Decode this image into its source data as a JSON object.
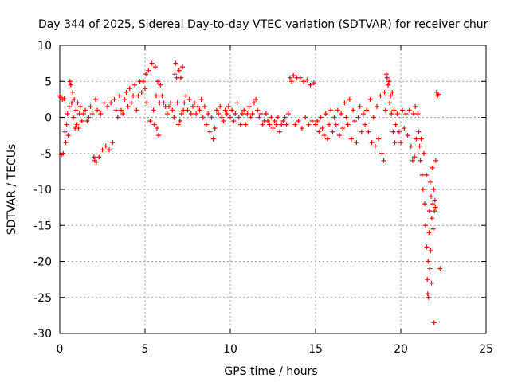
{
  "chart_data": {
    "type": "scatter",
    "title": "Day 344 of 2025, Sidereal Day-to-day VTEC variation (SDTVAR) for receiver chur",
    "xlabel": "GPS time / hours",
    "ylabel": "SDTVAR / TECUs",
    "xlim": [
      0,
      25
    ],
    "ylim": [
      -30,
      10
    ],
    "xticks": [
      0,
      5,
      10,
      15,
      20,
      25
    ],
    "yticks": [
      10,
      5,
      0,
      -5,
      -10,
      -15,
      -20,
      -25,
      -30
    ],
    "grid": true,
    "marker": "+",
    "series_color": "#ff0000",
    "series": [
      {
        "name": "SDTVAR",
        "points": [
          [
            0.0,
            3.0
          ],
          [
            0.05,
            2.8
          ],
          [
            0.1,
            -5.2
          ],
          [
            0.15,
            2.5
          ],
          [
            0.2,
            -5.0
          ],
          [
            0.25,
            2.6
          ],
          [
            0.3,
            -2.0
          ],
          [
            0.35,
            -3.5
          ],
          [
            0.4,
            -1.0
          ],
          [
            0.45,
            0.5
          ],
          [
            0.5,
            -2.5
          ],
          [
            0.55,
            1.5
          ],
          [
            0.6,
            5.0
          ],
          [
            0.65,
            4.5
          ],
          [
            0.7,
            2.0
          ],
          [
            0.75,
            3.5
          ],
          [
            0.8,
            0.0
          ],
          [
            0.85,
            2.5
          ],
          [
            0.9,
            -1.5
          ],
          [
            0.95,
            1.0
          ],
          [
            1.0,
            -1.0
          ],
          [
            1.05,
            2.0
          ],
          [
            1.1,
            -1.5
          ],
          [
            1.15,
            0.5
          ],
          [
            1.2,
            1.5
          ],
          [
            1.3,
            -0.5
          ],
          [
            1.4,
            0.5
          ],
          [
            1.5,
            1.0
          ],
          [
            1.6,
            -0.5
          ],
          [
            1.7,
            0.0
          ],
          [
            1.8,
            1.5
          ],
          [
            1.9,
            0.5
          ],
          [
            2.0,
            -5.5
          ],
          [
            2.05,
            -6.0
          ],
          [
            2.1,
            2.5
          ],
          [
            2.15,
            -6.2
          ],
          [
            2.2,
            1.0
          ],
          [
            2.3,
            -5.5
          ],
          [
            2.4,
            0.5
          ],
          [
            2.5,
            -4.5
          ],
          [
            2.6,
            2.0
          ],
          [
            2.7,
            -4.0
          ],
          [
            2.8,
            1.5
          ],
          [
            2.9,
            -4.5
          ],
          [
            3.0,
            2.0
          ],
          [
            3.1,
            -3.5
          ],
          [
            3.2,
            2.5
          ],
          [
            3.3,
            1.0
          ],
          [
            3.4,
            0.0
          ],
          [
            3.5,
            3.0
          ],
          [
            3.6,
            1.0
          ],
          [
            3.7,
            0.5
          ],
          [
            3.8,
            2.5
          ],
          [
            3.9,
            3.5
          ],
          [
            4.0,
            1.5
          ],
          [
            4.1,
            4.0
          ],
          [
            4.2,
            2.0
          ],
          [
            4.3,
            3.0
          ],
          [
            4.4,
            4.5
          ],
          [
            4.5,
            1.0
          ],
          [
            4.6,
            3.0
          ],
          [
            4.7,
            5.0
          ],
          [
            4.8,
            3.5
          ],
          [
            4.9,
            5.0
          ],
          [
            5.0,
            4.0
          ],
          [
            5.05,
            6.0
          ],
          [
            5.1,
            2.0
          ],
          [
            5.2,
            6.5
          ],
          [
            5.3,
            -0.5
          ],
          [
            5.4,
            7.5
          ],
          [
            5.5,
            1.0
          ],
          [
            5.55,
            -1.0
          ],
          [
            5.6,
            7.0
          ],
          [
            5.65,
            3.0
          ],
          [
            5.7,
            -1.5
          ],
          [
            5.75,
            5.0
          ],
          [
            5.8,
            -2.5
          ],
          [
            5.85,
            2.0
          ],
          [
            5.9,
            4.5
          ],
          [
            6.0,
            3.0
          ],
          [
            6.1,
            2.0
          ],
          [
            6.2,
            1.5
          ],
          [
            6.3,
            0.5
          ],
          [
            6.4,
            1.5
          ],
          [
            6.5,
            2.0
          ],
          [
            6.6,
            1.0
          ],
          [
            6.7,
            0.0
          ],
          [
            6.75,
            6.0
          ],
          [
            6.8,
            7.5
          ],
          [
            6.85,
            5.5
          ],
          [
            6.9,
            2.0
          ],
          [
            6.95,
            -1.0
          ],
          [
            7.0,
            6.5
          ],
          [
            7.05,
            -0.5
          ],
          [
            7.1,
            5.5
          ],
          [
            7.15,
            0.5
          ],
          [
            7.2,
            7.0
          ],
          [
            7.25,
            1.0
          ],
          [
            7.3,
            2.0
          ],
          [
            7.4,
            3.0
          ],
          [
            7.5,
            1.0
          ],
          [
            7.6,
            2.5
          ],
          [
            7.7,
            0.5
          ],
          [
            7.8,
            1.5
          ],
          [
            7.9,
            2.0
          ],
          [
            8.0,
            0.5
          ],
          [
            8.1,
            1.5
          ],
          [
            8.2,
            1.0
          ],
          [
            8.3,
            2.5
          ],
          [
            8.4,
            0.0
          ],
          [
            8.5,
            1.5
          ],
          [
            8.6,
            -1.0
          ],
          [
            8.7,
            0.5
          ],
          [
            8.8,
            -2.0
          ],
          [
            8.9,
            0.0
          ],
          [
            9.0,
            -3.0
          ],
          [
            9.1,
            -1.5
          ],
          [
            9.2,
            1.0
          ],
          [
            9.3,
            0.5
          ],
          [
            9.4,
            1.5
          ],
          [
            9.5,
            0.0
          ],
          [
            9.6,
            -0.5
          ],
          [
            9.7,
            1.0
          ],
          [
            9.8,
            0.5
          ],
          [
            9.9,
            1.5
          ],
          [
            10.0,
            0.0
          ],
          [
            10.1,
            1.0
          ],
          [
            10.2,
            -0.5
          ],
          [
            10.3,
            0.5
          ],
          [
            10.4,
            2.0
          ],
          [
            10.5,
            0.0
          ],
          [
            10.6,
            -1.0
          ],
          [
            10.7,
            0.5
          ],
          [
            10.8,
            1.0
          ],
          [
            10.9,
            -1.0
          ],
          [
            11.0,
            0.5
          ],
          [
            11.1,
            1.5
          ],
          [
            11.2,
            0.0
          ],
          [
            11.3,
            0.5
          ],
          [
            11.4,
            2.0
          ],
          [
            11.5,
            2.5
          ],
          [
            11.6,
            1.0
          ],
          [
            11.7,
            0.0
          ],
          [
            11.8,
            0.5
          ],
          [
            11.9,
            -1.0
          ],
          [
            12.0,
            -0.5
          ],
          [
            12.1,
            0.5
          ],
          [
            12.2,
            -0.5
          ],
          [
            12.3,
            -1.0
          ],
          [
            12.4,
            0.0
          ],
          [
            12.5,
            -1.5
          ],
          [
            12.6,
            -0.5
          ],
          [
            12.7,
            -1.0
          ],
          [
            12.8,
            0.0
          ],
          [
            12.9,
            -2.0
          ],
          [
            13.0,
            -1.0
          ],
          [
            13.1,
            -0.5
          ],
          [
            13.2,
            0.0
          ],
          [
            13.3,
            -1.0
          ],
          [
            13.4,
            0.5
          ],
          [
            13.5,
            5.5
          ],
          [
            13.6,
            5.0
          ],
          [
            13.7,
            5.8
          ],
          [
            13.8,
            -1.0
          ],
          [
            13.9,
            5.5
          ],
          [
            14.0,
            -0.5
          ],
          [
            14.1,
            5.5
          ],
          [
            14.2,
            -1.5
          ],
          [
            14.3,
            5.0
          ],
          [
            14.4,
            0.0
          ],
          [
            14.5,
            5.2
          ],
          [
            14.6,
            -1.0
          ],
          [
            14.7,
            4.5
          ],
          [
            14.8,
            -0.5
          ],
          [
            14.9,
            4.8
          ],
          [
            15.0,
            -1.0
          ],
          [
            15.1,
            -0.5
          ],
          [
            15.2,
            -2.0
          ],
          [
            15.3,
            0.0
          ],
          [
            15.4,
            -1.5
          ],
          [
            15.5,
            -2.5
          ],
          [
            15.6,
            0.5
          ],
          [
            15.7,
            -3.0
          ],
          [
            15.8,
            -1.0
          ],
          [
            15.9,
            1.0
          ],
          [
            16.0,
            -2.0
          ],
          [
            16.1,
            0.0
          ],
          [
            16.2,
            -1.0
          ],
          [
            16.3,
            1.0
          ],
          [
            16.4,
            -2.5
          ],
          [
            16.5,
            0.5
          ],
          [
            16.6,
            -1.5
          ],
          [
            16.7,
            2.0
          ],
          [
            16.8,
            0.0
          ],
          [
            16.9,
            -1.0
          ],
          [
            17.0,
            2.5
          ],
          [
            17.1,
            -3.0
          ],
          [
            17.2,
            1.0
          ],
          [
            17.3,
            -0.5
          ],
          [
            17.4,
            -3.5
          ],
          [
            17.5,
            0.0
          ],
          [
            17.6,
            1.5
          ],
          [
            17.7,
            -2.0
          ],
          [
            17.8,
            0.5
          ],
          [
            17.9,
            -1.0
          ],
          [
            18.0,
            1.0
          ],
          [
            18.1,
            -2.0
          ],
          [
            18.2,
            2.5
          ],
          [
            18.3,
            -3.5
          ],
          [
            18.4,
            0.0
          ],
          [
            18.5,
            -4.0
          ],
          [
            18.6,
            1.5
          ],
          [
            18.7,
            -3.0
          ],
          [
            18.8,
            3.0
          ],
          [
            18.9,
            -5.0
          ],
          [
            19.0,
            -6.0
          ],
          [
            19.05,
            3.5
          ],
          [
            19.1,
            1.0
          ],
          [
            19.15,
            6.0
          ],
          [
            19.2,
            5.5
          ],
          [
            19.25,
            4.5
          ],
          [
            19.3,
            5.0
          ],
          [
            19.35,
            2.0
          ],
          [
            19.4,
            3.0
          ],
          [
            19.45,
            0.5
          ],
          [
            19.5,
            3.5
          ],
          [
            19.55,
            -2.0
          ],
          [
            19.6,
            1.0
          ],
          [
            19.65,
            -3.5
          ],
          [
            19.7,
            -1.0
          ],
          [
            19.8,
            0.5
          ],
          [
            19.9,
            -2.0
          ],
          [
            20.0,
            -3.5
          ],
          [
            20.1,
            1.0
          ],
          [
            20.2,
            -1.5
          ],
          [
            20.3,
            0.5
          ],
          [
            20.4,
            -2.5
          ],
          [
            20.5,
            1.0
          ],
          [
            20.6,
            -4.0
          ],
          [
            20.7,
            -6.0
          ],
          [
            20.75,
            0.5
          ],
          [
            20.8,
            -5.5
          ],
          [
            20.85,
            1.5
          ],
          [
            20.9,
            -3.0
          ],
          [
            21.0,
            0.5
          ],
          [
            21.05,
            -2.0
          ],
          [
            21.1,
            -4.0
          ],
          [
            21.15,
            -6.0
          ],
          [
            21.2,
            -3.0
          ],
          [
            21.25,
            -8.0
          ],
          [
            21.3,
            -10.0
          ],
          [
            21.35,
            -5.0
          ],
          [
            21.4,
            -12.0
          ],
          [
            21.45,
            -15.0
          ],
          [
            21.5,
            -8.0
          ],
          [
            21.52,
            -18.0
          ],
          [
            21.55,
            -22.5
          ],
          [
            21.58,
            -24.5
          ],
          [
            21.6,
            -20.0
          ],
          [
            21.62,
            -25.0
          ],
          [
            21.65,
            -16.0
          ],
          [
            21.68,
            -13.0
          ],
          [
            21.7,
            -21.0
          ],
          [
            21.72,
            -9.0
          ],
          [
            21.75,
            -18.5
          ],
          [
            21.78,
            -11.0
          ],
          [
            21.8,
            -23.0
          ],
          [
            21.82,
            -14.0
          ],
          [
            21.85,
            -7.0
          ],
          [
            21.88,
            -12.0
          ],
          [
            21.9,
            -15.5
          ],
          [
            21.93,
            -10.0
          ],
          [
            21.95,
            -28.5
          ],
          [
            21.97,
            -13.0
          ],
          [
            22.0,
            -11.5
          ],
          [
            22.03,
            -12.5
          ],
          [
            22.05,
            -6.0
          ],
          [
            22.1,
            3.5
          ],
          [
            22.15,
            3.0
          ],
          [
            22.2,
            3.2
          ],
          [
            22.3,
            -21.0
          ]
        ]
      }
    ]
  }
}
